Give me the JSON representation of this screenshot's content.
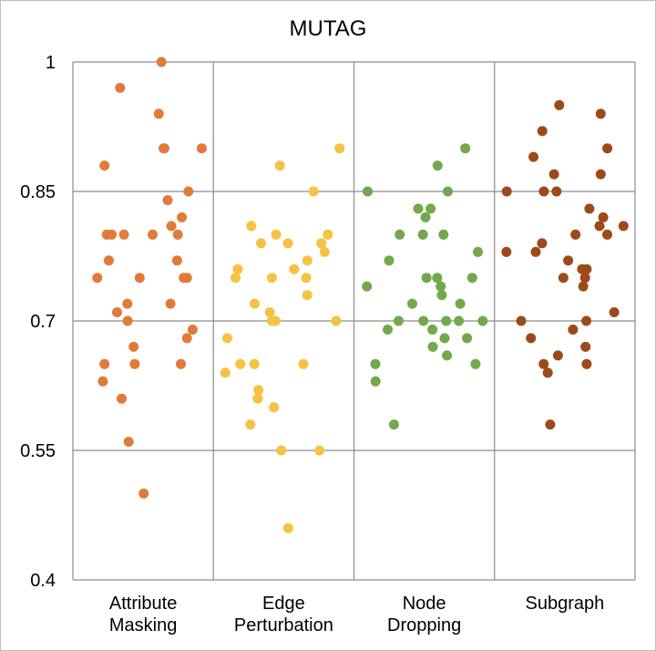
{
  "chart_data": {
    "type": "scatter",
    "title": "MUTAG",
    "xlabel": "",
    "ylabel": "",
    "ylim": [
      0.4,
      1.0
    ],
    "yticks": [
      "0.4",
      "0.55",
      "0.7",
      "0.85",
      "1"
    ],
    "grid": true,
    "legend": "none",
    "categories": [
      {
        "lines": [
          "Attribute",
          "Masking"
        ]
      },
      {
        "lines": [
          "Edge",
          "Perturbation"
        ]
      },
      {
        "lines": [
          "Node",
          "Dropping"
        ]
      },
      {
        "lines": [
          "Subgraph"
        ]
      }
    ],
    "series": [
      {
        "color": "#E07B39",
        "values": [
          1.0,
          0.97,
          0.94,
          0.9,
          0.9,
          0.9,
          0.88,
          0.85,
          0.84,
          0.82,
          0.81,
          0.8,
          0.8,
          0.8,
          0.8,
          0.8,
          0.77,
          0.77,
          0.75,
          0.75,
          0.75,
          0.75,
          0.72,
          0.72,
          0.71,
          0.7,
          0.69,
          0.68,
          0.67,
          0.65,
          0.65,
          0.65,
          0.63,
          0.61,
          0.56,
          0.5
        ]
      },
      {
        "color": "#F5C242",
        "values": [
          0.9,
          0.88,
          0.85,
          0.81,
          0.8,
          0.8,
          0.79,
          0.79,
          0.79,
          0.78,
          0.77,
          0.76,
          0.76,
          0.75,
          0.75,
          0.75,
          0.73,
          0.72,
          0.71,
          0.7,
          0.7,
          0.7,
          0.7,
          0.68,
          0.65,
          0.65,
          0.65,
          0.64,
          0.62,
          0.61,
          0.6,
          0.58,
          0.55,
          0.55,
          0.46
        ]
      },
      {
        "color": "#73A84B",
        "values": [
          0.9,
          0.88,
          0.85,
          0.85,
          0.83,
          0.83,
          0.82,
          0.8,
          0.8,
          0.8,
          0.78,
          0.77,
          0.75,
          0.75,
          0.75,
          0.74,
          0.74,
          0.73,
          0.72,
          0.72,
          0.7,
          0.7,
          0.7,
          0.7,
          0.7,
          0.69,
          0.69,
          0.68,
          0.68,
          0.67,
          0.66,
          0.65,
          0.65,
          0.63,
          0.58
        ]
      },
      {
        "color": "#9C4A1A",
        "values": [
          0.95,
          0.94,
          0.92,
          0.9,
          0.89,
          0.87,
          0.87,
          0.85,
          0.85,
          0.85,
          0.83,
          0.82,
          0.81,
          0.81,
          0.8,
          0.8,
          0.79,
          0.78,
          0.78,
          0.77,
          0.76,
          0.76,
          0.75,
          0.75,
          0.74,
          0.71,
          0.7,
          0.7,
          0.69,
          0.68,
          0.67,
          0.66,
          0.65,
          0.65,
          0.64,
          0.58
        ]
      }
    ]
  }
}
